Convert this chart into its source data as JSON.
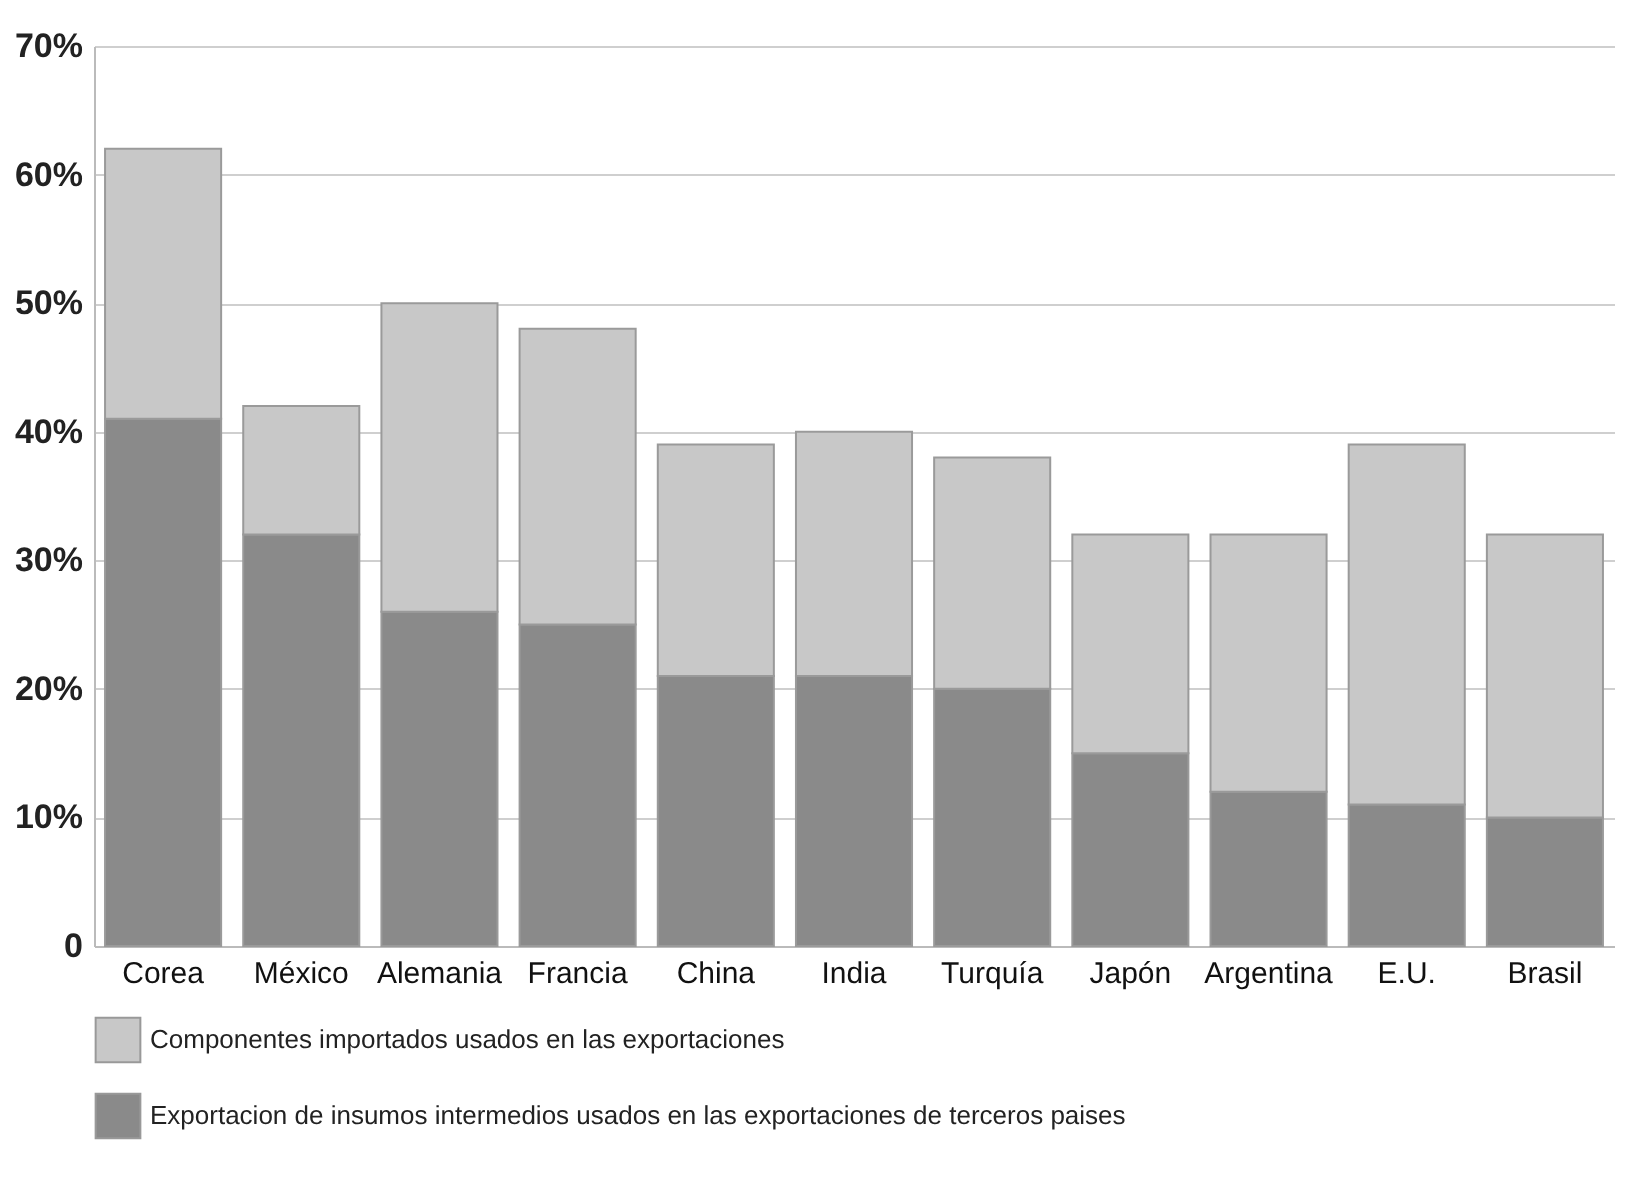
{
  "chart_data": {
    "type": "bar",
    "stacked": true,
    "categories": [
      "Corea",
      "México",
      "Alemania",
      "Francia",
      "China",
      "India",
      "Turquía",
      "Japón",
      "Argentina",
      "E.U.",
      "Brasil"
    ],
    "series": [
      {
        "name": "Exportacion de insumos intermedios usados en las exportaciones de terceros paises",
        "color": "#8a8a8a",
        "values": [
          41,
          32,
          26,
          25,
          21,
          21,
          20,
          15,
          12,
          11,
          10
        ]
      },
      {
        "name": "Componentes importados usados en las exportaciones",
        "color": "#c8c8c8",
        "values": [
          21,
          10,
          24,
          23,
          18,
          19,
          18,
          17,
          20,
          28,
          22
        ]
      }
    ],
    "ylim": [
      0,
      70
    ],
    "yticks": [
      {
        "value": 0,
        "label": "0"
      },
      {
        "value": 10,
        "label": "10%"
      },
      {
        "value": 20,
        "label": "20%"
      },
      {
        "value": 30,
        "label": "30%"
      },
      {
        "value": 40,
        "label": "40%"
      },
      {
        "value": 50,
        "label": "50%"
      },
      {
        "value": 60,
        "label": "60%"
      },
      {
        "value": 70,
        "label": "70%"
      }
    ],
    "grid": "y",
    "legend": "bottom"
  }
}
